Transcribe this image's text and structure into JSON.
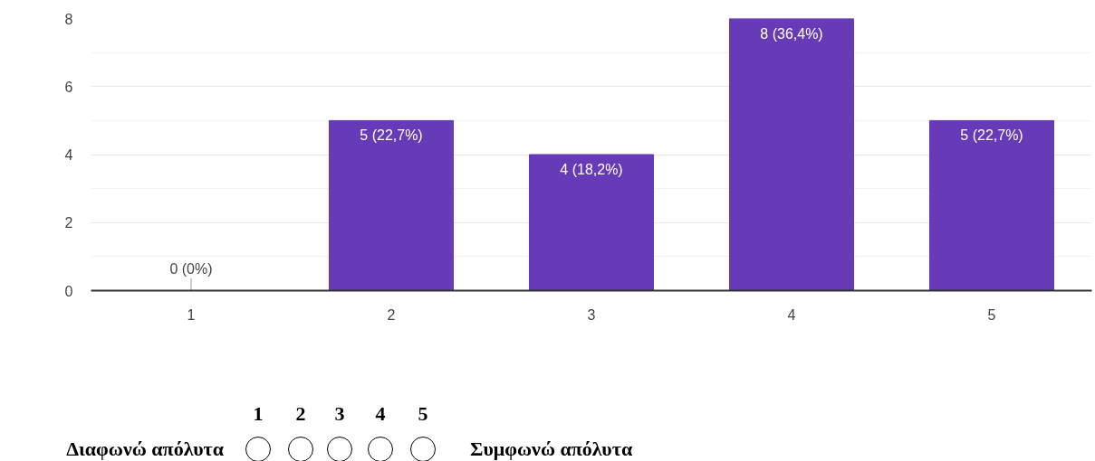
{
  "chart_data": {
    "type": "bar",
    "categories": [
      "1",
      "2",
      "3",
      "4",
      "5"
    ],
    "values": [
      0,
      5,
      4,
      8,
      5
    ],
    "value_labels": [
      "0 (0%)",
      "5 (22,7%)",
      "4 (18,2%)",
      "8 (36,4%)",
      "5 (22,7%)"
    ],
    "color": "#673ab7",
    "ylim": [
      0,
      8
    ],
    "yticks": [
      0,
      2,
      4,
      6,
      8
    ],
    "grid": "y",
    "annotations": [
      "1",
      "2",
      "3",
      "4",
      "5",
      "Διαφωνώ απόλυτα",
      "Συμφωνώ απόλυτα"
    ]
  }
}
